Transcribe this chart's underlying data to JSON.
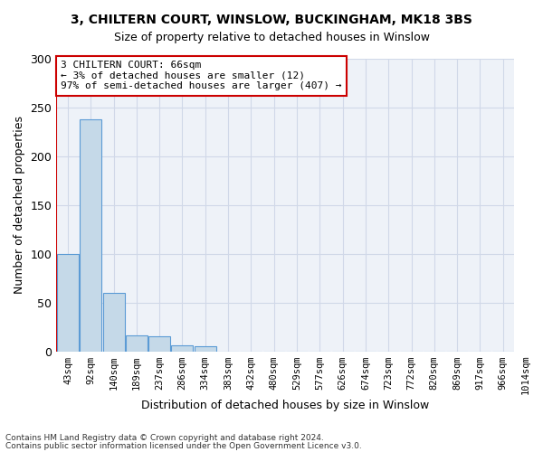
{
  "title1": "3, CHILTERN COURT, WINSLOW, BUCKINGHAM, MK18 3BS",
  "title2": "Size of property relative to detached houses in Winslow",
  "xlabel": "Distribution of detached houses by size in Winslow",
  "ylabel": "Number of detached properties",
  "footer1": "Contains HM Land Registry data © Crown copyright and database right 2024.",
  "footer2": "Contains public sector information licensed under the Open Government Licence v3.0.",
  "annotation_line1": "3 CHILTERN COURT: 66sqm",
  "annotation_line2": "← 3% of detached houses are smaller (12)",
  "annotation_line3": "97% of semi-detached houses are larger (407) →",
  "bar_values": [
    100,
    238,
    60,
    16,
    15,
    6,
    5,
    0,
    0,
    0,
    0,
    0,
    0,
    0,
    0,
    0,
    0,
    0,
    0,
    0
  ],
  "bin_labels": [
    "43sqm",
    "92sqm",
    "140sqm",
    "189sqm",
    "237sqm",
    "286sqm",
    "334sqm",
    "383sqm",
    "432sqm",
    "480sqm",
    "529sqm",
    "577sqm",
    "626sqm",
    "674sqm",
    "723sqm",
    "772sqm",
    "820sqm",
    "869sqm",
    "917sqm",
    "966sqm",
    "1014sqm"
  ],
  "bar_color": "#c5d9e8",
  "bar_edge_color": "#5b9bd5",
  "grid_color": "#d0d8e8",
  "background_color": "#eef2f8",
  "vline_color": "#cc0000",
  "annotation_box_color": "#cc0000",
  "ylim": [
    0,
    300
  ],
  "yticks": [
    0,
    50,
    100,
    150,
    200,
    250,
    300
  ]
}
